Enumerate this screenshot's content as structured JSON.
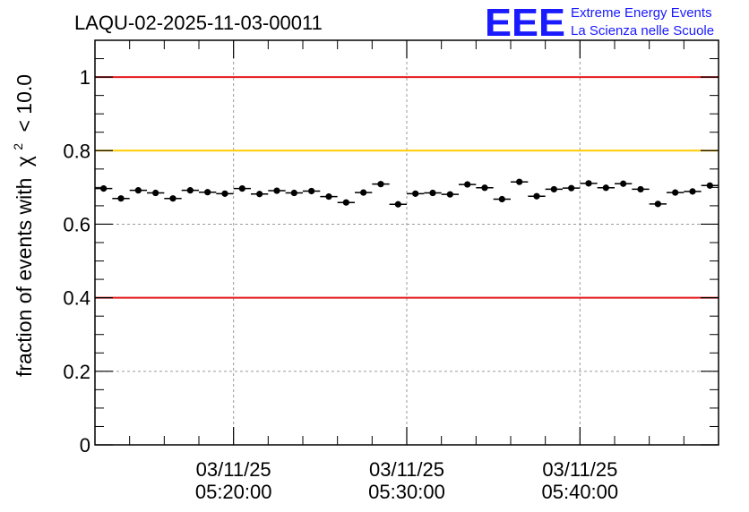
{
  "chart_data": {
    "type": "scatter",
    "title": "LAQU-02-2025-11-03-00011",
    "ylabel": "fraction of events with",
    "ylabel_symbol": "χ",
    "ylabel_superscript": "2",
    "ylabel_cut": "< 10.0",
    "xlabel": "",
    "ylim": [
      0,
      1.1
    ],
    "xlim_minutes": [
      12.0,
      48.0
    ],
    "y_ticks": [
      {
        "value": 0,
        "label": "0"
      },
      {
        "value": 0.2,
        "label": "0.2"
      },
      {
        "value": 0.4,
        "label": "0.4"
      },
      {
        "value": 0.6,
        "label": "0.6"
      },
      {
        "value": 0.8,
        "label": "0.8"
      },
      {
        "value": 1,
        "label": "1"
      }
    ],
    "x_ticks": [
      {
        "minute": 20,
        "date": "03/11/25",
        "time": "05:20:00"
      },
      {
        "minute": 30,
        "date": "03/11/25",
        "time": "05:30:00"
      },
      {
        "minute": 40,
        "date": "03/11/25",
        "time": "05:40:00"
      }
    ],
    "reference_lines": [
      {
        "value": 1.0,
        "color": "#e41a1c"
      },
      {
        "value": 0.8,
        "color": "#ffcc00"
      },
      {
        "value": 0.4,
        "color": "#e41a1c"
      }
    ],
    "bin_width_minutes": 1.0,
    "series": [
      {
        "name": "fraction",
        "x_minutes": [
          12.5,
          13.5,
          14.5,
          15.5,
          16.5,
          17.5,
          18.5,
          19.5,
          20.5,
          21.5,
          22.5,
          23.5,
          24.5,
          25.5,
          26.5,
          27.5,
          28.5,
          29.5,
          30.5,
          31.5,
          32.5,
          33.5,
          34.5,
          35.5,
          36.5,
          37.5,
          38.5,
          39.5,
          40.5,
          41.5,
          42.5,
          43.5,
          44.5,
          45.5,
          46.5,
          47.5
        ],
        "values": [
          0.697,
          0.67,
          0.692,
          0.685,
          0.67,
          0.692,
          0.687,
          0.683,
          0.697,
          0.682,
          0.691,
          0.685,
          0.69,
          0.675,
          0.659,
          0.686,
          0.709,
          0.654,
          0.683,
          0.685,
          0.681,
          0.708,
          0.699,
          0.668,
          0.715,
          0.676,
          0.695,
          0.698,
          0.711,
          0.699,
          0.71,
          0.695,
          0.655,
          0.686,
          0.689,
          0.705
        ],
        "errors": [
          0.008,
          0.008,
          0.008,
          0.008,
          0.008,
          0.008,
          0.008,
          0.008,
          0.008,
          0.008,
          0.008,
          0.008,
          0.008,
          0.008,
          0.008,
          0.008,
          0.008,
          0.008,
          0.008,
          0.008,
          0.008,
          0.008,
          0.008,
          0.008,
          0.008,
          0.008,
          0.008,
          0.008,
          0.008,
          0.008,
          0.008,
          0.008,
          0.008,
          0.008,
          0.008,
          0.008
        ]
      }
    ]
  },
  "logo": {
    "letters": "EEE",
    "line1": "Extreme Energy Events",
    "line2": "La Scienza nelle Scuole",
    "color": "#1a1aff"
  },
  "colors": {
    "frame": "#000000",
    "grid": "#9a9a9a",
    "marker": "#000000"
  }
}
